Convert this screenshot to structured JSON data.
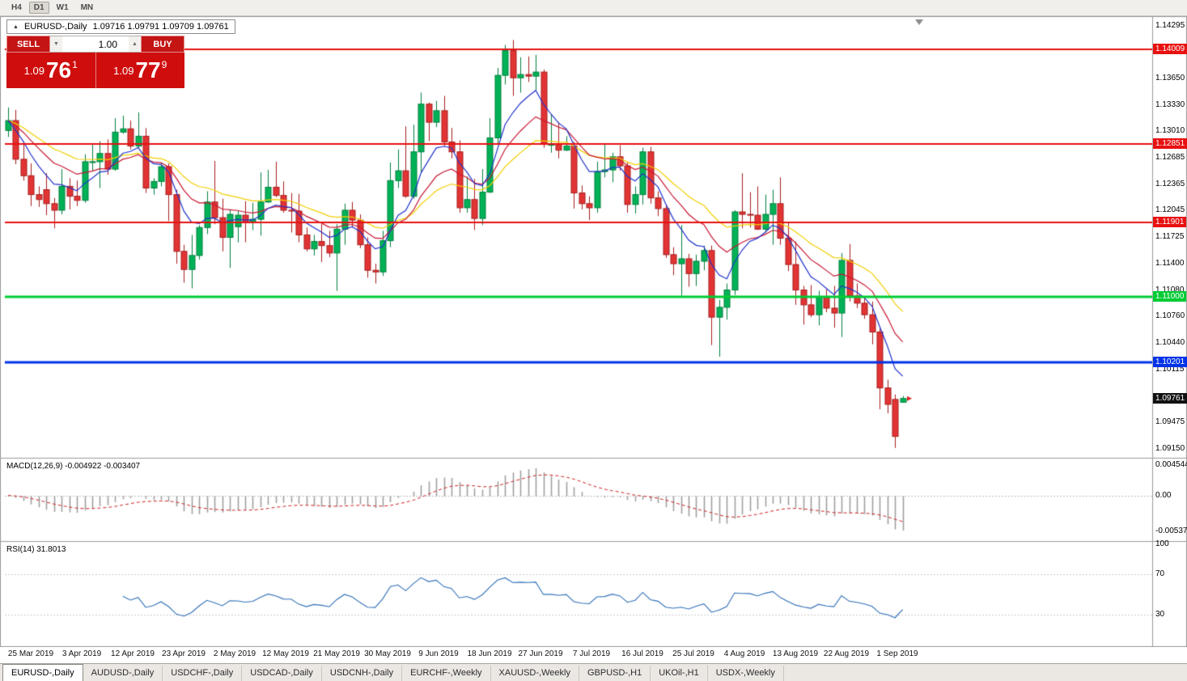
{
  "toolbar": {
    "timeframes": [
      "H4",
      "D1",
      "W1",
      "MN"
    ]
  },
  "chart_header": {
    "collapse_icon": "▲",
    "title": "EURUSD-,Daily",
    "ohlc": "1.09716 1.09791 1.09709 1.09761"
  },
  "trade_panel": {
    "sell_label": "SELL",
    "buy_label": "BUY",
    "volume": "1.00",
    "volume_down_icon": "▼",
    "volume_up_icon": "▲",
    "sell_price": {
      "prefix": "1.09",
      "big": "76",
      "sup": "1"
    },
    "buy_price": {
      "prefix": "1.09",
      "big": "77",
      "sup": "9"
    }
  },
  "indicators": {
    "macd": {
      "label": "MACD(12,26,9)",
      "values": "-0.004922 -0.003407",
      "axis": [
        {
          "text": "0.004544",
          "value": 0.004544
        },
        {
          "text": "0.00",
          "value": 0.0
        },
        {
          "text": "-0.0053730",
          "value": -0.005373
        }
      ],
      "range": {
        "max": 0.0052,
        "min": -0.0064
      }
    },
    "rsi": {
      "label": "RSI(14)",
      "value": "31.8013",
      "levels": [
        70,
        30
      ],
      "axis": [
        {
          "text": "100",
          "value": 100
        },
        {
          "text": "70",
          "value": 70
        },
        {
          "text": "30",
          "value": 30
        }
      ]
    }
  },
  "price_axis": {
    "labels": [
      "1.14295",
      "1.13650",
      "1.13330",
      "1.13010",
      "1.12685",
      "1.12365",
      "1.12045",
      "1.11725",
      "1.11400",
      "1.11080",
      "1.10760",
      "1.10440",
      "1.10115",
      "1.09475",
      "1.09150"
    ],
    "tags": [
      {
        "text": "1.14009",
        "price": 1.14009,
        "bg": "#e81010",
        "fg": "#ffffff"
      },
      {
        "text": "1.12851",
        "price": 1.12851,
        "bg": "#e81010",
        "fg": "#ffffff"
      },
      {
        "text": "1.11901",
        "price": 1.11901,
        "bg": "#e81010",
        "fg": "#ffffff"
      },
      {
        "text": "1.11000",
        "price": 1.11,
        "bg": "#00cc33",
        "fg": "#ffffff"
      },
      {
        "text": "1.10201",
        "price": 1.10201,
        "bg": "#0033e8",
        "fg": "#ffffff"
      },
      {
        "text": "1.09761",
        "price": 1.09761,
        "bg": "#111111",
        "fg": "#ffffff"
      }
    ]
  },
  "date_axis": [
    "25 Mar 2019",
    "3 Apr 2019",
    "12 Apr 2019",
    "23 Apr 2019",
    "2 May 2019",
    "12 May 2019",
    "21 May 2019",
    "30 May 2019",
    "9 Jun 2019",
    "18 Jun 2019",
    "27 Jun 2019",
    "7 Jul 2019",
    "16 Jul 2019",
    "25 Jul 2019",
    "4 Aug 2019",
    "13 Aug 2019",
    "22 Aug 2019",
    "1 Sep 2019"
  ],
  "tabs": [
    {
      "label": "EURUSD-,Daily",
      "active": true
    },
    {
      "label": "AUDUSD-,Daily",
      "active": false
    },
    {
      "label": "USDCHF-,Daily",
      "active": false
    },
    {
      "label": "USDCAD-,Daily",
      "active": false
    },
    {
      "label": "USDCNH-,Daily",
      "active": false
    },
    {
      "label": "EURCHF-,Weekly",
      "active": false
    },
    {
      "label": "XAUUSD-,Weekly",
      "active": false
    },
    {
      "label": "GBPUSD-,H1",
      "active": false
    },
    {
      "label": "UKOil-,H1",
      "active": false
    },
    {
      "label": "USDX-,Weekly",
      "active": false
    }
  ],
  "chart_data": {
    "type": "candlestick",
    "symbol": "EURUSD-",
    "timeframe": "Daily",
    "current": {
      "open": 1.09716,
      "high": 1.09791,
      "low": 1.09709,
      "close": 1.09761,
      "bid": 1.09761,
      "ask": 1.09779
    },
    "price_range": {
      "max": 1.1437,
      "min": 1.0908
    },
    "up_color": "#00b257",
    "up_border": "#00803d",
    "down_color": "#e23434",
    "down_border": "#a81d1d",
    "hlines": [
      {
        "price": 1.14009,
        "color": "#e81010",
        "width": 2
      },
      {
        "price": 1.12851,
        "color": "#e81010",
        "width": 2
      },
      {
        "price": 1.11901,
        "color": "#e81010",
        "width": 2
      },
      {
        "price": 1.11,
        "color": "#00cc33",
        "width": 3
      },
      {
        "price": 1.10201,
        "color": "#0033e8",
        "width": 3
      }
    ],
    "ma": [
      {
        "period": 24,
        "type": "ema",
        "color": "#f2cf00"
      },
      {
        "period": 14,
        "type": "ema",
        "color": "#c81732"
      },
      {
        "period": 7,
        "type": "ema",
        "color": "#2233cc"
      }
    ],
    "candles": [
      [
        1.1302,
        1.133,
        1.1294,
        1.1314
      ],
      [
        1.1314,
        1.1327,
        1.1261,
        1.1267
      ],
      [
        1.1267,
        1.1288,
        1.1241,
        1.1247
      ],
      [
        1.1247,
        1.1262,
        1.121,
        1.1224
      ],
      [
        1.1224,
        1.1234,
        1.1209,
        1.1218
      ],
      [
        1.123,
        1.125,
        1.1199,
        1.1213
      ],
      [
        1.1213,
        1.122,
        1.1183,
        1.1205
      ],
      [
        1.1205,
        1.1255,
        1.12,
        1.1234
      ],
      [
        1.1234,
        1.1244,
        1.1206,
        1.1222
      ],
      [
        1.1222,
        1.1241,
        1.121,
        1.1217
      ],
      [
        1.1217,
        1.1273,
        1.1214,
        1.1264
      ],
      [
        1.1264,
        1.1285,
        1.1253,
        1.1264
      ],
      [
        1.1264,
        1.1289,
        1.1232,
        1.1274
      ],
      [
        1.1274,
        1.1291,
        1.1248,
        1.1255
      ],
      [
        1.1255,
        1.1317,
        1.1253,
        1.13
      ],
      [
        1.13,
        1.132,
        1.1298,
        1.1304
      ],
      [
        1.1304,
        1.1314,
        1.1279,
        1.1283
      ],
      [
        1.1283,
        1.1324,
        1.128,
        1.1295
      ],
      [
        1.1295,
        1.1305,
        1.1226,
        1.1232
      ],
      [
        1.1232,
        1.1244,
        1.1224,
        1.124
      ],
      [
        1.124,
        1.1262,
        1.1234,
        1.1258
      ],
      [
        1.1258,
        1.1262,
        1.1192,
        1.1224
      ],
      [
        1.1224,
        1.123,
        1.114,
        1.1155
      ],
      [
        1.1155,
        1.1163,
        1.1117,
        1.1133
      ],
      [
        1.1133,
        1.1175,
        1.111,
        1.115
      ],
      [
        1.115,
        1.1187,
        1.1145,
        1.1184
      ],
      [
        1.1184,
        1.1228,
        1.1176,
        1.1215
      ],
      [
        1.1215,
        1.1265,
        1.1188,
        1.1196
      ],
      [
        1.1196,
        1.1219,
        1.1155,
        1.1172
      ],
      [
        1.1172,
        1.1205,
        1.1135,
        1.12
      ],
      [
        1.1185,
        1.1204,
        1.1166,
        1.1199
      ],
      [
        1.1199,
        1.1216,
        1.1166,
        1.119
      ],
      [
        1.119,
        1.1214,
        1.1181,
        1.1194
      ],
      [
        1.1194,
        1.1251,
        1.1174,
        1.1215
      ],
      [
        1.1215,
        1.1254,
        1.1214,
        1.1233
      ],
      [
        1.1233,
        1.1264,
        1.1221,
        1.1223
      ],
      [
        1.1223,
        1.124,
        1.1202,
        1.1205
      ],
      [
        1.1205,
        1.1226,
        1.1178,
        1.1204
      ],
      [
        1.1204,
        1.1225,
        1.1166,
        1.1175
      ],
      [
        1.1175,
        1.1184,
        1.1155,
        1.1158
      ],
      [
        1.1158,
        1.1175,
        1.115,
        1.1167
      ],
      [
        1.1167,
        1.1188,
        1.1142,
        1.1162
      ],
      [
        1.1162,
        1.118,
        1.1148,
        1.1153
      ],
      [
        1.1153,
        1.1188,
        1.1107,
        1.1182
      ],
      [
        1.1182,
        1.1213,
        1.1163,
        1.1205
      ],
      [
        1.1205,
        1.1215,
        1.1184,
        1.1193
      ],
      [
        1.1193,
        1.12,
        1.1159,
        1.1163
      ],
      [
        1.1163,
        1.1172,
        1.1123,
        1.1132
      ],
      [
        1.1132,
        1.114,
        1.1116,
        1.113
      ],
      [
        1.113,
        1.118,
        1.1125,
        1.1168
      ],
      [
        1.1168,
        1.1263,
        1.116,
        1.1241
      ],
      [
        1.1241,
        1.1279,
        1.1232,
        1.1253
      ],
      [
        1.1253,
        1.1307,
        1.122,
        1.1222
      ],
      [
        1.1222,
        1.1309,
        1.1219,
        1.1276
      ],
      [
        1.1276,
        1.1348,
        1.1251,
        1.1334
      ],
      [
        1.1334,
        1.1336,
        1.1289,
        1.1312
      ],
      [
        1.1312,
        1.1338,
        1.1306,
        1.1326
      ],
      [
        1.1326,
        1.1344,
        1.1283,
        1.1288
      ],
      [
        1.1288,
        1.1305,
        1.1268,
        1.1276
      ],
      [
        1.1276,
        1.129,
        1.1202,
        1.1208
      ],
      [
        1.1208,
        1.1246,
        1.1202,
        1.1218
      ],
      [
        1.1218,
        1.1243,
        1.1181,
        1.1195
      ],
      [
        1.1195,
        1.1255,
        1.1187,
        1.1227
      ],
      [
        1.1227,
        1.1317,
        1.1226,
        1.1293
      ],
      [
        1.1293,
        1.1378,
        1.1285,
        1.1369
      ],
      [
        1.1369,
        1.1406,
        1.1358,
        1.1399
      ],
      [
        1.1399,
        1.1412,
        1.1344,
        1.1366
      ],
      [
        1.1366,
        1.1391,
        1.1348,
        1.137
      ],
      [
        1.137,
        1.1392,
        1.1361,
        1.1368
      ],
      [
        1.1368,
        1.1394,
        1.1351,
        1.1373
      ],
      [
        1.1373,
        1.1376,
        1.1281,
        1.1285
      ],
      [
        1.1285,
        1.1322,
        1.1275,
        1.1285
      ],
      [
        1.1285,
        1.1312,
        1.1268,
        1.1278
      ],
      [
        1.1278,
        1.1295,
        1.1277,
        1.1283
      ],
      [
        1.1283,
        1.1288,
        1.1207,
        1.1226
      ],
      [
        1.1226,
        1.1235,
        1.1206,
        1.1213
      ],
      [
        1.1213,
        1.1222,
        1.1193,
        1.1208
      ],
      [
        1.1208,
        1.1264,
        1.1202,
        1.1252
      ],
      [
        1.1252,
        1.1286,
        1.1245,
        1.1254
      ],
      [
        1.1254,
        1.1275,
        1.1239,
        1.127
      ],
      [
        1.127,
        1.1284,
        1.1253,
        1.1259
      ],
      [
        1.1259,
        1.1263,
        1.1202,
        1.1212
      ],
      [
        1.1212,
        1.1234,
        1.1201,
        1.1224
      ],
      [
        1.1224,
        1.1281,
        1.1212,
        1.1276
      ],
      [
        1.1276,
        1.1282,
        1.1213,
        1.122
      ],
      [
        1.122,
        1.1228,
        1.1198,
        1.1207
      ],
      [
        1.1207,
        1.1211,
        1.1147,
        1.1151
      ],
      [
        1.1151,
        1.116,
        1.1126,
        1.114
      ],
      [
        1.114,
        1.1187,
        1.1101,
        1.1146
      ],
      [
        1.1146,
        1.1152,
        1.1112,
        1.1128
      ],
      [
        1.1128,
        1.1151,
        1.1113,
        1.1143
      ],
      [
        1.1143,
        1.1162,
        1.1132,
        1.1156
      ],
      [
        1.1156,
        1.1162,
        1.1041,
        1.1075
      ],
      [
        1.1075,
        1.1096,
        1.1027,
        1.1087
      ],
      [
        1.1087,
        1.1116,
        1.1072,
        1.1108
      ],
      [
        1.1108,
        1.1205,
        1.1102,
        1.1203
      ],
      [
        1.1203,
        1.125,
        1.1183,
        1.12
      ],
      [
        1.12,
        1.1227,
        1.1184,
        1.1199
      ],
      [
        1.1199,
        1.1234,
        1.1181,
        1.1182
      ],
      [
        1.1182,
        1.1224,
        1.1178,
        1.12
      ],
      [
        1.12,
        1.123,
        1.1163,
        1.1213
      ],
      [
        1.1213,
        1.1245,
        1.1163,
        1.1171
      ],
      [
        1.1171,
        1.1191,
        1.1131,
        1.1139
      ],
      [
        1.1139,
        1.1167,
        1.109,
        1.1108
      ],
      [
        1.1108,
        1.1113,
        1.1066,
        1.109
      ],
      [
        1.109,
        1.1114,
        1.1075,
        1.1078
      ],
      [
        1.1078,
        1.1107,
        1.1065,
        1.11
      ],
      [
        1.11,
        1.1109,
        1.1081,
        1.1086
      ],
      [
        1.1086,
        1.1113,
        1.1062,
        1.108
      ],
      [
        1.108,
        1.1153,
        1.1051,
        1.1144
      ],
      [
        1.1144,
        1.1164,
        1.1094,
        1.1101
      ],
      [
        1.1101,
        1.1116,
        1.1086,
        1.1092
      ],
      [
        1.1092,
        1.1098,
        1.1073,
        1.1078
      ],
      [
        1.1078,
        1.1094,
        1.1042,
        1.1057
      ],
      [
        1.1057,
        1.1061,
        1.0963,
        1.0989
      ],
      [
        1.0989,
        1.0999,
        1.0958,
        1.0969
      ],
      [
        1.0975,
        1.0981,
        1.0916,
        1.093
      ],
      [
        1.09716,
        1.09791,
        1.09709,
        1.09761
      ]
    ]
  }
}
